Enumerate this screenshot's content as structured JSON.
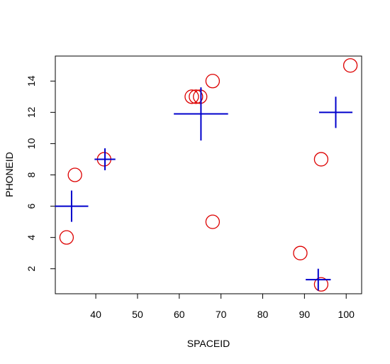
{
  "chart_data": {
    "type": "scatter",
    "title": "",
    "xlabel": "SPACEID",
    "ylabel": "PHONEID",
    "xlim": [
      30.3,
      103.7
    ],
    "ylim": [
      0.4,
      15.6
    ],
    "xticks": [
      40,
      50,
      60,
      70,
      80,
      90,
      100
    ],
    "yticks": [
      2,
      4,
      6,
      8,
      10,
      12,
      14
    ],
    "grid": false,
    "legend": "none",
    "series": [
      {
        "marker": "circle",
        "color": "#dd0000",
        "points": [
          {
            "x": 33,
            "y": 4
          },
          {
            "x": 35,
            "y": 8
          },
          {
            "x": 42,
            "y": 9
          },
          {
            "x": 63,
            "y": 13
          },
          {
            "x": 64,
            "y": 13
          },
          {
            "x": 65,
            "y": 13
          },
          {
            "x": 68,
            "y": 14
          },
          {
            "x": 68,
            "y": 5
          },
          {
            "x": 89,
            "y": 3
          },
          {
            "x": 94,
            "y": 9
          },
          {
            "x": 94,
            "y": 1
          },
          {
            "x": 101,
            "y": 15
          }
        ]
      },
      {
        "marker": "cross",
        "color": "#0000cc",
        "points": [
          {
            "x": 34.2,
            "y": 6.0,
            "wx": 4.0,
            "wy": 1.0
          },
          {
            "x": 42.2,
            "y": 9.0,
            "wx": 2.5,
            "wy": 0.7
          },
          {
            "x": 65.2,
            "y": 11.9,
            "wx": 6.5,
            "wy": 1.7
          },
          {
            "x": 97.5,
            "y": 12.0,
            "wx": 4.0,
            "wy": 1.0
          },
          {
            "x": 93.3,
            "y": 1.3,
            "wx": 3.0,
            "wy": 0.7
          }
        ]
      }
    ]
  }
}
